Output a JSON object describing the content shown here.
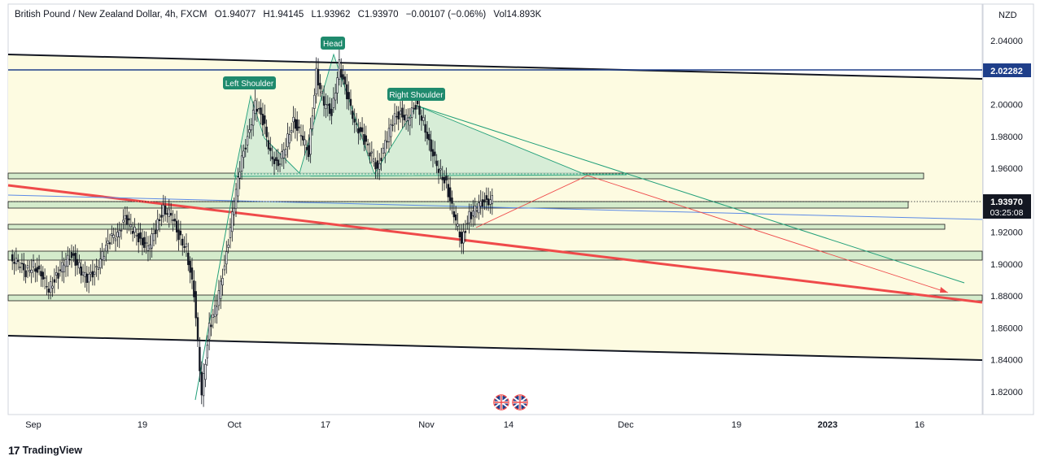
{
  "header": {
    "symbol": "British Pound / New Zealand Dollar, 4h, FXCM",
    "open": "O1.94077",
    "high": "H1.94145",
    "low": "L1.93962",
    "close": "C1.93970",
    "change": "−0.00107 (−0.06%)",
    "volume": "Vol14.893K"
  },
  "footer": {
    "brand": "TradingView",
    "logo_icon": "tradingview-logo-icon"
  },
  "colors": {
    "zone_fill": "#fdfbe1",
    "support_fill": "#d4ebcb",
    "pattern_fill": "#c9e8d3",
    "pattern_line": "#22a07a",
    "red_trend": "#ef4a4a",
    "blue_line": "#1f3f8a",
    "thin_blue": "#5b8ae6",
    "label_bg": "#1f8a6d"
  },
  "chart_data": {
    "type": "line",
    "title": "British Pound / New Zealand Dollar, 4h, FXCM",
    "xlabel": "",
    "ylabel": "",
    "y_axis_unit": "NZD",
    "ylim": [
      1.81,
      2.055
    ],
    "y_ticks": [
      "2.04000",
      "2.02000",
      "2.00000",
      "1.98000",
      "1.96000",
      "1.94000",
      "1.92000",
      "1.90000",
      "1.88000",
      "1.86000",
      "1.84000",
      "1.82000"
    ],
    "x_ticks": [
      "Sep",
      "19",
      "Oct",
      "17",
      "Nov",
      "14",
      "Dec",
      "19",
      "2023",
      "16"
    ],
    "grid": false,
    "price_labels": {
      "current": "1.93970",
      "countdown": "03:25:08",
      "level": "2.02282"
    },
    "pattern_labels": [
      "Left Shoulder",
      "Head",
      "Right Shoulder"
    ],
    "series": [
      {
        "values": [
          1.905,
          1.9,
          1.895,
          1.9,
          1.892,
          1.885,
          1.892,
          1.9,
          1.906,
          1.898,
          1.89,
          1.896,
          1.905,
          1.915,
          1.92,
          1.928,
          1.922,
          1.915,
          1.91,
          1.922,
          1.935,
          1.93,
          1.918,
          1.91,
          1.88,
          1.82,
          1.86,
          1.875,
          1.9,
          1.93,
          1.96,
          1.98,
          2.0,
          1.99,
          1.97,
          1.96,
          1.975,
          1.99,
          1.98,
          1.97,
          2.02,
          2.0,
          1.995,
          2.025,
          2.005,
          1.99,
          1.98,
          1.97,
          1.96,
          1.975,
          1.99,
          1.995,
          1.99,
          2.0,
          1.99,
          1.97,
          1.96,
          1.95,
          1.93,
          1.915,
          1.93,
          1.935,
          1.94,
          1.94
        ]
      }
    ],
    "levels": [
      2.02282
    ],
    "annotations": [
      "Left Shoulder",
      "Head",
      "Right Shoulder"
    ]
  }
}
